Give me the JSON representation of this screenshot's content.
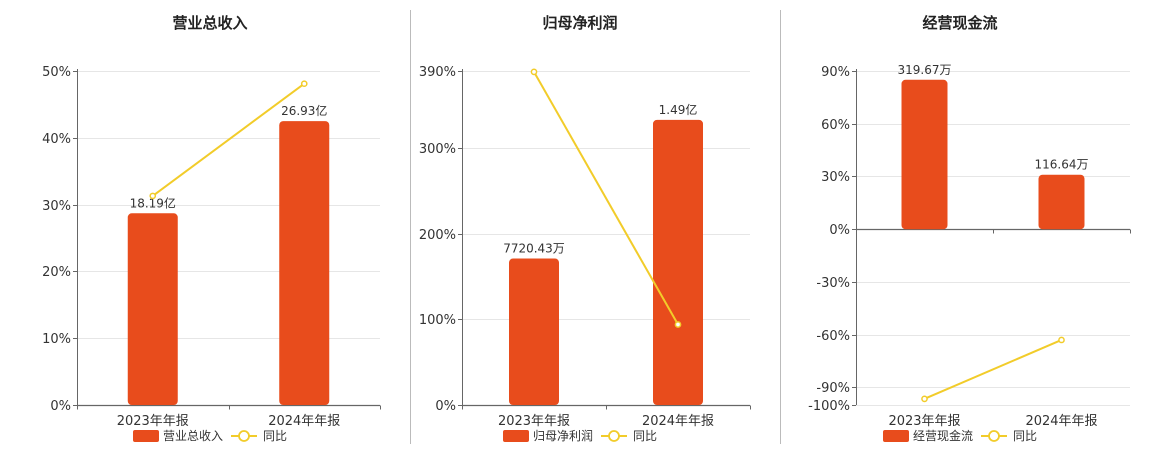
{
  "colors": {
    "bar": "#e84c1c",
    "line": "#f2cc2a",
    "grid": "#e6e6e6",
    "axis": "#666666",
    "divider": "#bbbbbb"
  },
  "chart_data": [
    {
      "type": "bar",
      "title": "营业总收入",
      "categories": [
        "2023年年报",
        "2024年年报"
      ],
      "ylim": [
        0,
        50
      ],
      "yticks": [
        0,
        10,
        20,
        30,
        40,
        50
      ],
      "ytick_labels": [
        "0%",
        "10%",
        "20%",
        "30%",
        "40%",
        "50%"
      ],
      "series": [
        {
          "name": "营业总收入",
          "kind": "bar",
          "values": [
            28.7,
            42.5
          ],
          "labels": [
            "18.19亿",
            "26.93亿"
          ]
        },
        {
          "name": "同比",
          "kind": "line",
          "values": [
            31.3,
            48.1
          ]
        }
      ],
      "legend": "bottom-center"
    },
    {
      "type": "bar",
      "title": "归母净利润",
      "categories": [
        "2023年年报",
        "2024年年报"
      ],
      "ylim": [
        0,
        390
      ],
      "yticks": [
        0,
        100,
        200,
        300,
        390
      ],
      "ytick_labels": [
        "0%",
        "100%",
        "200%",
        "300%",
        "390%"
      ],
      "series": [
        {
          "name": "归母净利润",
          "kind": "bar",
          "values": [
            171,
            333
          ],
          "labels": [
            "7720.43万",
            "1.49亿"
          ]
        },
        {
          "name": "同比",
          "kind": "line",
          "values": [
            389,
            94
          ]
        }
      ],
      "legend": "bottom-center"
    },
    {
      "type": "bar",
      "title": "经营现金流",
      "categories": [
        "2023年年报",
        "2024年年报"
      ],
      "ylim": [
        -100,
        90
      ],
      "yticks": [
        -100,
        -90,
        -60,
        -30,
        0,
        30,
        60,
        90
      ],
      "ytick_labels": [
        "-100%",
        "-90%",
        "-60%",
        "-30%",
        "0%",
        "30%",
        "60%",
        "90%"
      ],
      "series": [
        {
          "name": "经营现金流",
          "kind": "bar",
          "values": [
            85,
            31
          ],
          "labels": [
            "319.67万",
            "116.64万"
          ]
        },
        {
          "name": "同比",
          "kind": "line",
          "values": [
            -96.5,
            -63
          ]
        }
      ],
      "legend": "bottom-center"
    }
  ]
}
